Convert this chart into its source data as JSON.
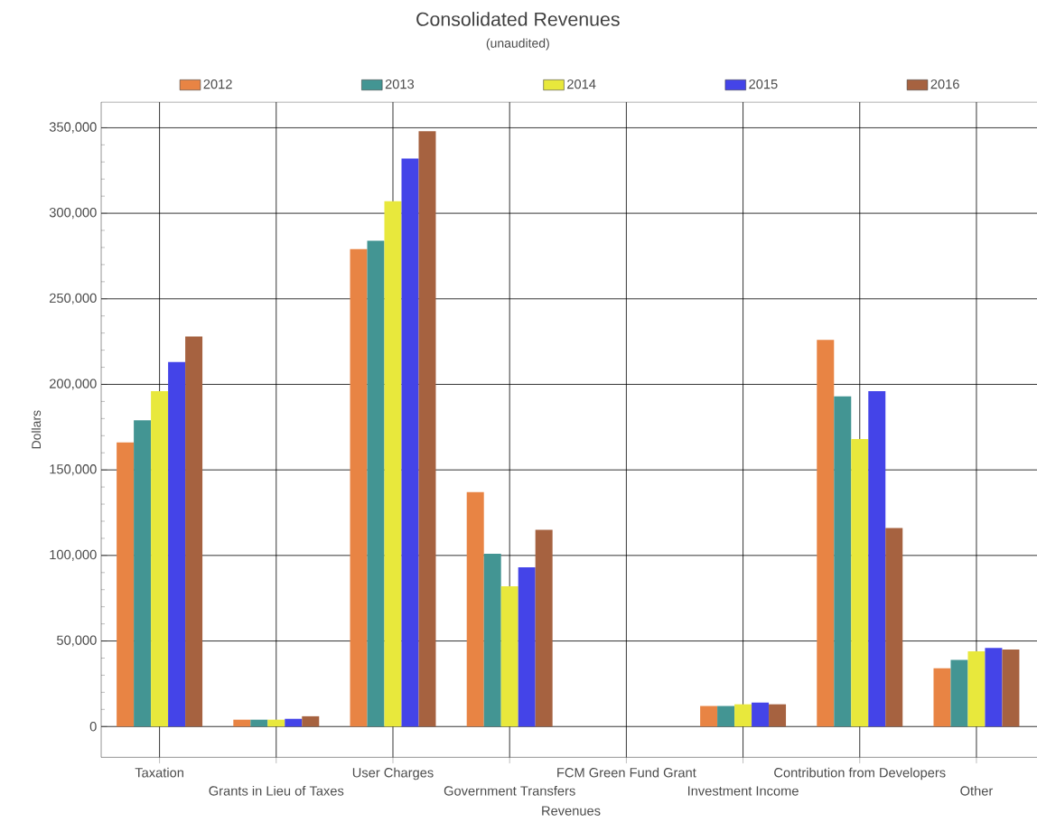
{
  "chart_data": {
    "type": "bar",
    "title": "Consolidated Revenues",
    "subtitle": "(unaudited)",
    "xlabel": "Revenues",
    "ylabel": "Dollars",
    "categories": [
      "Taxation",
      "Grants in Lieu of Taxes",
      "User Charges",
      "Government Transfers",
      "FCM Green Fund Grant",
      "Investment Income",
      "Contribution from Developers",
      "Other"
    ],
    "series": [
      {
        "name": "2012",
        "color": "#e88444",
        "values": [
          166000,
          4000,
          279000,
          137000,
          0,
          12000,
          226000,
          34000
        ]
      },
      {
        "name": "2013",
        "color": "#439593",
        "values": [
          179000,
          4000,
          284000,
          101000,
          0,
          12000,
          193000,
          39000
        ]
      },
      {
        "name": "2014",
        "color": "#e8e83c",
        "values": [
          196000,
          4000,
          307000,
          82000,
          0,
          13000,
          168000,
          44000
        ]
      },
      {
        "name": "2015",
        "color": "#4444e8",
        "values": [
          213000,
          4500,
          332000,
          93000,
          0,
          14000,
          196000,
          46000
        ]
      },
      {
        "name": "2016",
        "color": "#a66240",
        "values": [
          228000,
          6000,
          348000,
          115000,
          0,
          13000,
          116000,
          45000
        ]
      }
    ],
    "ylim": [
      -18000,
      365000
    ],
    "yticks": [
      {
        "value": 0,
        "label": "0"
      },
      {
        "value": 50000,
        "label": "50,000"
      },
      {
        "value": 100000,
        "label": "100,000"
      },
      {
        "value": 150000,
        "label": "150,000"
      },
      {
        "value": 200000,
        "label": "200,000"
      },
      {
        "value": 250000,
        "label": "250,000"
      },
      {
        "value": 300000,
        "label": "300,000"
      },
      {
        "value": 350000,
        "label": "350,000"
      }
    ],
    "grid": true,
    "legend": "top"
  }
}
